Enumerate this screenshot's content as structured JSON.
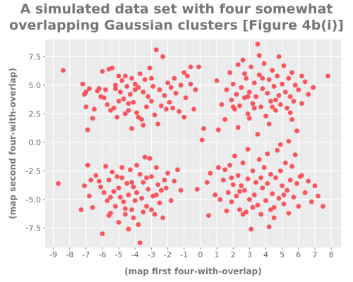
{
  "chart_data": {
    "type": "scatter",
    "title_line1": "A simulated data set with four somewhat",
    "title_line2": "overlapping Gaussian clusters [Figure 4b(i)]",
    "xlabel": "(map first four-with-overlap)",
    "ylabel": "(map second four-with-overlap)",
    "xlim": [
      -9.5,
      8.6
    ],
    "ylim": [
      -9.2,
      9.0
    ],
    "xticks": [
      -9,
      -8,
      -7,
      -6,
      -5,
      -4,
      -3,
      -2,
      -1,
      0,
      1,
      2,
      3,
      4,
      5,
      6,
      7,
      8
    ],
    "xtick_labels": [
      "-9",
      "-8",
      "-7",
      "-6",
      "-5",
      "-4",
      "-3",
      "-2",
      "-1",
      "0",
      "1",
      "2",
      "3",
      "4",
      "5",
      "6",
      "7",
      "8"
    ],
    "yticks": [
      -7.5,
      -5.0,
      -2.5,
      0.0,
      2.5,
      5.0,
      7.5
    ],
    "ytick_labels": [
      "-7.5",
      "-5.0",
      "-2.5",
      "0.0",
      "2.5",
      "5.0",
      "7.5"
    ],
    "grid": true,
    "marker_color": "#f8555d",
    "panel_color": "#ebebeb",
    "series": [
      {
        "points": [
          [
            -8.4,
            6.3
          ],
          [
            -8.7,
            -3.6
          ],
          [
            -7.2,
            5.1
          ],
          [
            -7.1,
            4.2
          ],
          [
            -7.0,
            3.1
          ],
          [
            -6.8,
            4.7
          ],
          [
            -6.6,
            2.1
          ],
          [
            -6.3,
            4.5
          ],
          [
            -6.1,
            4.0
          ],
          [
            -6.0,
            6.2
          ],
          [
            -5.8,
            4.6
          ],
          [
            -5.7,
            3.3
          ],
          [
            -5.6,
            6.4
          ],
          [
            -5.4,
            6.5
          ],
          [
            -5.3,
            3.0
          ],
          [
            -5.2,
            4.7
          ],
          [
            -5.1,
            2.2
          ],
          [
            -5.0,
            5.8
          ],
          [
            -4.9,
            4.4
          ],
          [
            -4.8,
            5.4
          ],
          [
            -4.7,
            3.8
          ],
          [
            -4.6,
            5.8
          ],
          [
            -4.5,
            4.9
          ],
          [
            -4.4,
            2.8
          ],
          [
            -4.3,
            4.2
          ],
          [
            -4.2,
            5.6
          ],
          [
            -4.1,
            3.5
          ],
          [
            -4.0,
            5.1
          ],
          [
            -3.9,
            2.6
          ],
          [
            -3.8,
            4.8
          ],
          [
            -3.7,
            6.0
          ],
          [
            -3.6,
            2.0
          ],
          [
            -3.5,
            4.4
          ],
          [
            -3.4,
            5.5
          ],
          [
            -3.3,
            3.1
          ],
          [
            -3.2,
            4.0
          ],
          [
            -3.1,
            6.5
          ],
          [
            -3.0,
            3.6
          ],
          [
            -2.9,
            4.9
          ],
          [
            -2.8,
            2.4
          ],
          [
            -2.7,
            8.1
          ],
          [
            -2.5,
            4.6
          ],
          [
            -2.3,
            7.5
          ],
          [
            -2.2,
            4.1
          ],
          [
            -2.1,
            2.9
          ],
          [
            -2.0,
            5.2
          ],
          [
            -1.9,
            3.5
          ],
          [
            -1.8,
            4.8
          ],
          [
            -1.6,
            5.6
          ],
          [
            -1.5,
            4.3
          ],
          [
            -1.3,
            2.7
          ],
          [
            -1.2,
            5.0
          ],
          [
            -1.0,
            6.1
          ],
          [
            -0.9,
            3.9
          ],
          [
            -0.8,
            5.8
          ],
          [
            -0.6,
            6.6
          ],
          [
            -0.4,
            2.9
          ],
          [
            -0.3,
            4.6
          ],
          [
            -0.1,
            6.6
          ],
          [
            0.1,
            0.2
          ],
          [
            -5.9,
            3.9
          ],
          [
            -6.5,
            2.9
          ],
          [
            -6.9,
            1.1
          ],
          [
            -4.2,
            1.2
          ],
          [
            -3.5,
            1.5
          ],
          [
            -2.6,
            1.6
          ],
          [
            -5.5,
            2.8
          ],
          [
            -4.6,
            2.5
          ],
          [
            -4.0,
            4.6
          ],
          [
            -3.0,
            5.6
          ],
          [
            -5.2,
            5.0
          ],
          [
            -6.2,
            4.7
          ],
          [
            -7.0,
            4.4
          ],
          [
            -4.4,
            3.4
          ],
          [
            -3.8,
            2.2
          ],
          [
            -2.4,
            3.2
          ],
          [
            -1.7,
            3.0
          ],
          [
            -1.0,
            2.2
          ],
          [
            -0.6,
            5.1
          ],
          [
            -5.0,
            3.6
          ],
          [
            -7.3,
            -5.9
          ],
          [
            -7.1,
            -3.8
          ],
          [
            -6.9,
            -2.0
          ],
          [
            -6.8,
            -4.7
          ],
          [
            -6.6,
            -5.7
          ],
          [
            -6.4,
            -2.9
          ],
          [
            -6.1,
            -3.9
          ],
          [
            -6.0,
            -8.0
          ],
          [
            -5.9,
            -4.4
          ],
          [
            -5.8,
            -2.1
          ],
          [
            -5.7,
            -5.1
          ],
          [
            -5.6,
            -3.3
          ],
          [
            -5.5,
            -6.2
          ],
          [
            -5.4,
            -2.6
          ],
          [
            -5.3,
            -4.3
          ],
          [
            -5.2,
            -5.6
          ],
          [
            -5.1,
            -3.0
          ],
          [
            -5.0,
            -7.0
          ],
          [
            -4.9,
            -4.8
          ],
          [
            -4.8,
            -2.2
          ],
          [
            -4.7,
            -5.2
          ],
          [
            -4.6,
            -6.3
          ],
          [
            -4.5,
            -3.6
          ],
          [
            -4.4,
            -4.6
          ],
          [
            -4.3,
            -2.4
          ],
          [
            -4.2,
            -5.9
          ],
          [
            -4.1,
            -3.9
          ],
          [
            -4.0,
            -5.1
          ],
          [
            -3.9,
            -4.4
          ],
          [
            -3.8,
            -7.2
          ],
          [
            -3.7,
            -2.8
          ],
          [
            -3.6,
            -4.9
          ],
          [
            -3.5,
            -3.5
          ],
          [
            -3.4,
            -1.3
          ],
          [
            -3.3,
            -5.6
          ],
          [
            -3.2,
            -4.1
          ],
          [
            -3.1,
            -1.4
          ],
          [
            -3.0,
            -3.0
          ],
          [
            -2.9,
            -4.7
          ],
          [
            -2.8,
            -6.3
          ],
          [
            -2.7,
            -2.2
          ],
          [
            -2.6,
            -3.7
          ],
          [
            -2.5,
            -5.3
          ],
          [
            -2.4,
            -4.2
          ],
          [
            -2.3,
            -6.6
          ],
          [
            -2.2,
            -3.3
          ],
          [
            -2.1,
            -4.0
          ],
          [
            -2.0,
            -2.7
          ],
          [
            -1.8,
            -5.1
          ],
          [
            -1.6,
            -3.4
          ],
          [
            -1.4,
            -2.4
          ],
          [
            -1.2,
            -4.2
          ],
          [
            -3.7,
            -8.8
          ],
          [
            -4.4,
            -7.6
          ],
          [
            -4.1,
            -6.6
          ],
          [
            -3.0,
            -5.9
          ],
          [
            -6.2,
            -3.4
          ],
          [
            -5.5,
            -4.8
          ],
          [
            -4.8,
            -3.1
          ],
          [
            -3.9,
            -2.0
          ],
          [
            -3.3,
            -3.1
          ],
          [
            -2.7,
            -4.6
          ],
          [
            -5.0,
            -4.0
          ],
          [
            -6.7,
            -3.3
          ],
          [
            -4.6,
            -5.8
          ],
          [
            -3.5,
            -6.1
          ],
          [
            -5.6,
            -6.4
          ],
          [
            -4.2,
            -3.5
          ],
          [
            1.0,
            5.4
          ],
          [
            1.1,
            1.1
          ],
          [
            1.3,
            3.3
          ],
          [
            1.5,
            2.0
          ],
          [
            1.6,
            4.6
          ],
          [
            1.8,
            6.1
          ],
          [
            1.9,
            3.7
          ],
          [
            2.0,
            5.1
          ],
          [
            2.1,
            2.9
          ],
          [
            2.2,
            4.2
          ],
          [
            2.3,
            6.8
          ],
          [
            2.4,
            3.2
          ],
          [
            2.5,
            4.8
          ],
          [
            2.6,
            7.2
          ],
          [
            2.7,
            3.9
          ],
          [
            2.8,
            5.6
          ],
          [
            2.9,
            2.5
          ],
          [
            3.0,
            4.4
          ],
          [
            3.1,
            6.6
          ],
          [
            3.2,
            3.4
          ],
          [
            3.3,
            5.2
          ],
          [
            3.4,
            4.0
          ],
          [
            3.5,
            8.6
          ],
          [
            3.6,
            5.9
          ],
          [
            3.7,
            3.1
          ],
          [
            3.8,
            4.7
          ],
          [
            3.9,
            6.9
          ],
          [
            4.0,
            2.3
          ],
          [
            4.1,
            4.3
          ],
          [
            4.2,
            5.5
          ],
          [
            4.3,
            3.6
          ],
          [
            4.4,
            6.3
          ],
          [
            4.5,
            4.9
          ],
          [
            4.6,
            2.8
          ],
          [
            4.7,
            5.8
          ],
          [
            4.8,
            4.1
          ],
          [
            4.9,
            3.3
          ],
          [
            5.0,
            5.1
          ],
          [
            5.1,
            6.7
          ],
          [
            5.2,
            4.4
          ],
          [
            5.3,
            3.0
          ],
          [
            5.4,
            5.6
          ],
          [
            5.5,
            4.0
          ],
          [
            5.6,
            6.1
          ],
          [
            5.7,
            3.6
          ],
          [
            5.8,
            5.0
          ],
          [
            5.9,
            1.0
          ],
          [
            6.0,
            4.6
          ],
          [
            6.2,
            3.4
          ],
          [
            6.4,
            5.3
          ],
          [
            6.6,
            4.2
          ],
          [
            6.9,
            4.8
          ],
          [
            7.8,
            5.8
          ],
          [
            3.0,
            2.1
          ],
          [
            2.3,
            1.3
          ],
          [
            4.2,
            1.6
          ],
          [
            5.6,
            2.0
          ],
          [
            3.6,
            7.6
          ],
          [
            4.8,
            7.5
          ],
          [
            2.0,
            3.1
          ],
          [
            2.7,
            6.0
          ],
          [
            3.3,
            3.0
          ],
          [
            4.6,
            3.7
          ],
          [
            5.5,
            2.6
          ],
          [
            3.8,
            5.6
          ],
          [
            4.4,
            3.1
          ],
          [
            2.9,
            4.0
          ],
          [
            6.2,
            5.8
          ],
          [
            0.2,
            1.2
          ],
          [
            -0.2,
            -4.1
          ],
          [
            0.4,
            -3.5
          ],
          [
            0.5,
            -6.4
          ],
          [
            0.6,
            -2.7
          ],
          [
            0.9,
            -4.6
          ],
          [
            1.1,
            -2.2
          ],
          [
            1.2,
            -5.0
          ],
          [
            1.4,
            -3.3
          ],
          [
            1.5,
            -2.4
          ],
          [
            1.6,
            -6.0
          ],
          [
            1.7,
            -4.4
          ],
          [
            1.8,
            -2.0
          ],
          [
            1.9,
            -5.2
          ],
          [
            2.0,
            -3.7
          ],
          [
            2.1,
            -1.2
          ],
          [
            2.2,
            -4.7
          ],
          [
            2.3,
            -2.9
          ],
          [
            2.4,
            -5.9
          ],
          [
            2.5,
            -3.8
          ],
          [
            2.6,
            -1.8
          ],
          [
            2.7,
            -4.2
          ],
          [
            2.8,
            -6.1
          ],
          [
            2.9,
            -3.2
          ],
          [
            3.0,
            -5.0
          ],
          [
            3.1,
            -7.6
          ],
          [
            3.2,
            -2.5
          ],
          [
            3.3,
            -4.6
          ],
          [
            3.4,
            -3.5
          ],
          [
            3.5,
            -5.5
          ],
          [
            3.6,
            -1.5
          ],
          [
            3.7,
            -6.3
          ],
          [
            3.8,
            -4.0
          ],
          [
            3.9,
            -2.2
          ],
          [
            4.0,
            -5.1
          ],
          [
            4.1,
            -3.6
          ],
          [
            4.2,
            -7.4
          ],
          [
            4.3,
            -2.8
          ],
          [
            4.4,
            -4.5
          ],
          [
            4.5,
            -5.7
          ],
          [
            4.6,
            -3.1
          ],
          [
            4.7,
            -0.7
          ],
          [
            4.8,
            -4.9
          ],
          [
            4.9,
            -2.5
          ],
          [
            5.0,
            -3.8
          ],
          [
            5.1,
            -5.4
          ],
          [
            5.2,
            -1.8
          ],
          [
            5.3,
            -4.2
          ],
          [
            5.4,
            -6.2
          ],
          [
            5.5,
            -3.3
          ],
          [
            5.6,
            -2.1
          ],
          [
            5.7,
            -4.8
          ],
          [
            5.9,
            -3.6
          ],
          [
            6.0,
            -5.6
          ],
          [
            6.2,
            -2.9
          ],
          [
            6.4,
            -4.4
          ],
          [
            6.6,
            -3.4
          ],
          [
            6.8,
            -5.2
          ],
          [
            7.0,
            -3.8
          ],
          [
            7.2,
            -4.7
          ],
          [
            7.5,
            -5.6
          ],
          [
            4.9,
            -0.2
          ],
          [
            3.5,
            0.7
          ],
          [
            5.4,
            0.1
          ],
          [
            2.9,
            -0.6
          ],
          [
            4.1,
            -1.0
          ],
          [
            5.8,
            -1.1
          ],
          [
            1.9,
            -3.1
          ],
          [
            3.2,
            -5.7
          ],
          [
            4.5,
            -6.6
          ],
          [
            2.4,
            -4.3
          ],
          [
            3.7,
            -3.1
          ],
          [
            5.1,
            -4.6
          ],
          [
            6.1,
            -3.0
          ],
          [
            4.3,
            -5.9
          ],
          [
            2.6,
            -6.3
          ]
        ]
      }
    ]
  }
}
